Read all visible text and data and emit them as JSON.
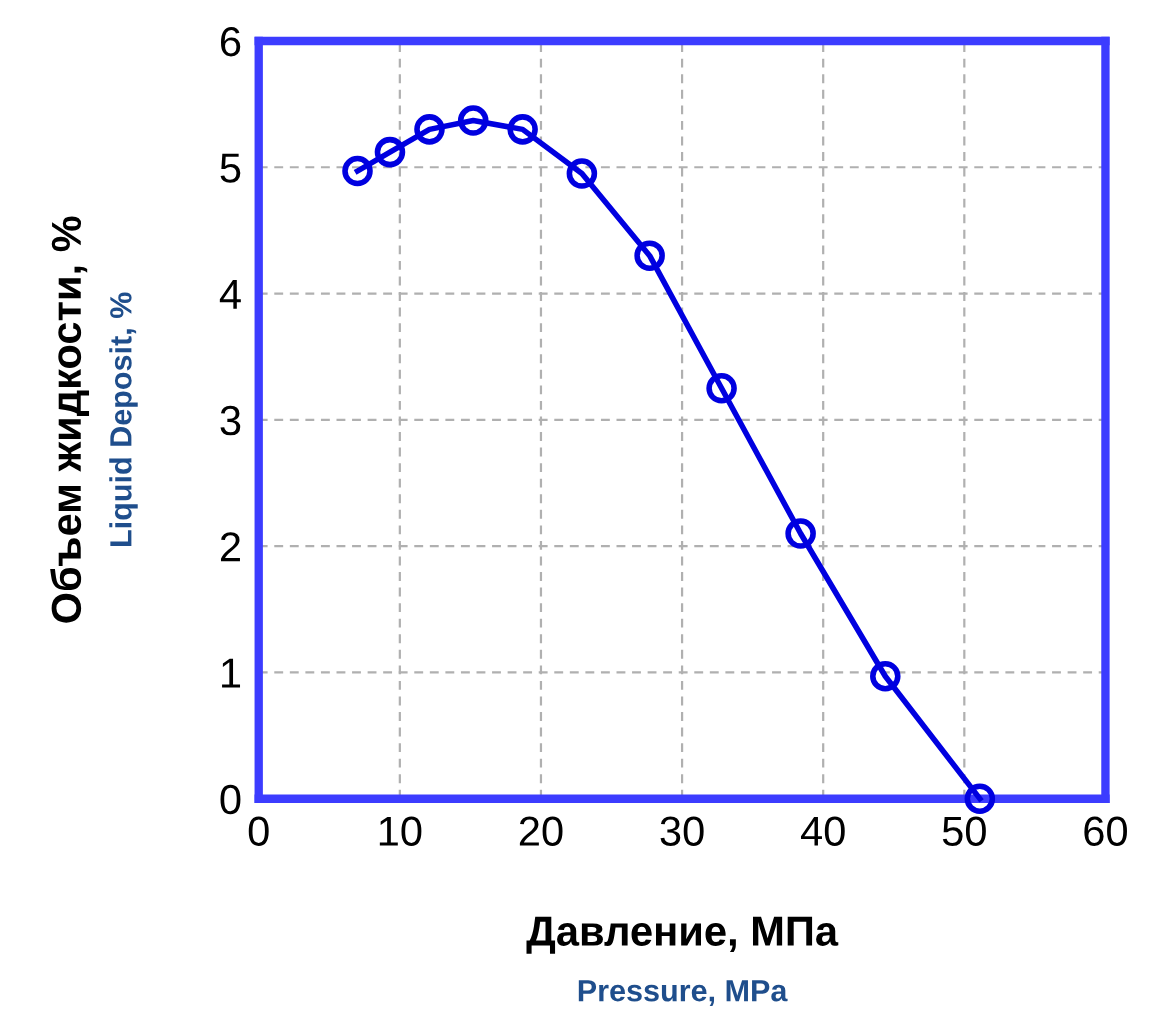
{
  "chart_data": {
    "type": "line",
    "xlabel": "Давление, МПа",
    "ylabel": "Объем жидкости, %",
    "annotations": [
      "Pressure, MPa",
      "Liquid Deposit, %"
    ],
    "series": [
      {
        "color": "#0000e0",
        "x": [
          7,
          9.3,
          12.1,
          15.2,
          18.7,
          22.9,
          27.7,
          32.8,
          38.4,
          44.4,
          51.1
        ],
        "values": [
          4.97,
          5.12,
          5.3,
          5.37,
          5.3,
          4.95,
          4.3,
          3.25,
          2.1,
          0.97,
          0
        ]
      }
    ],
    "xlim": [
      0,
      60
    ],
    "ylim": [
      0,
      6
    ],
    "xticks": [
      0,
      10,
      20,
      30,
      40,
      50,
      60
    ],
    "yticks": [
      0,
      1,
      2,
      3,
      4,
      5,
      6
    ],
    "grid": true,
    "marker": "circle",
    "line_style": "solid",
    "legend": false
  }
}
